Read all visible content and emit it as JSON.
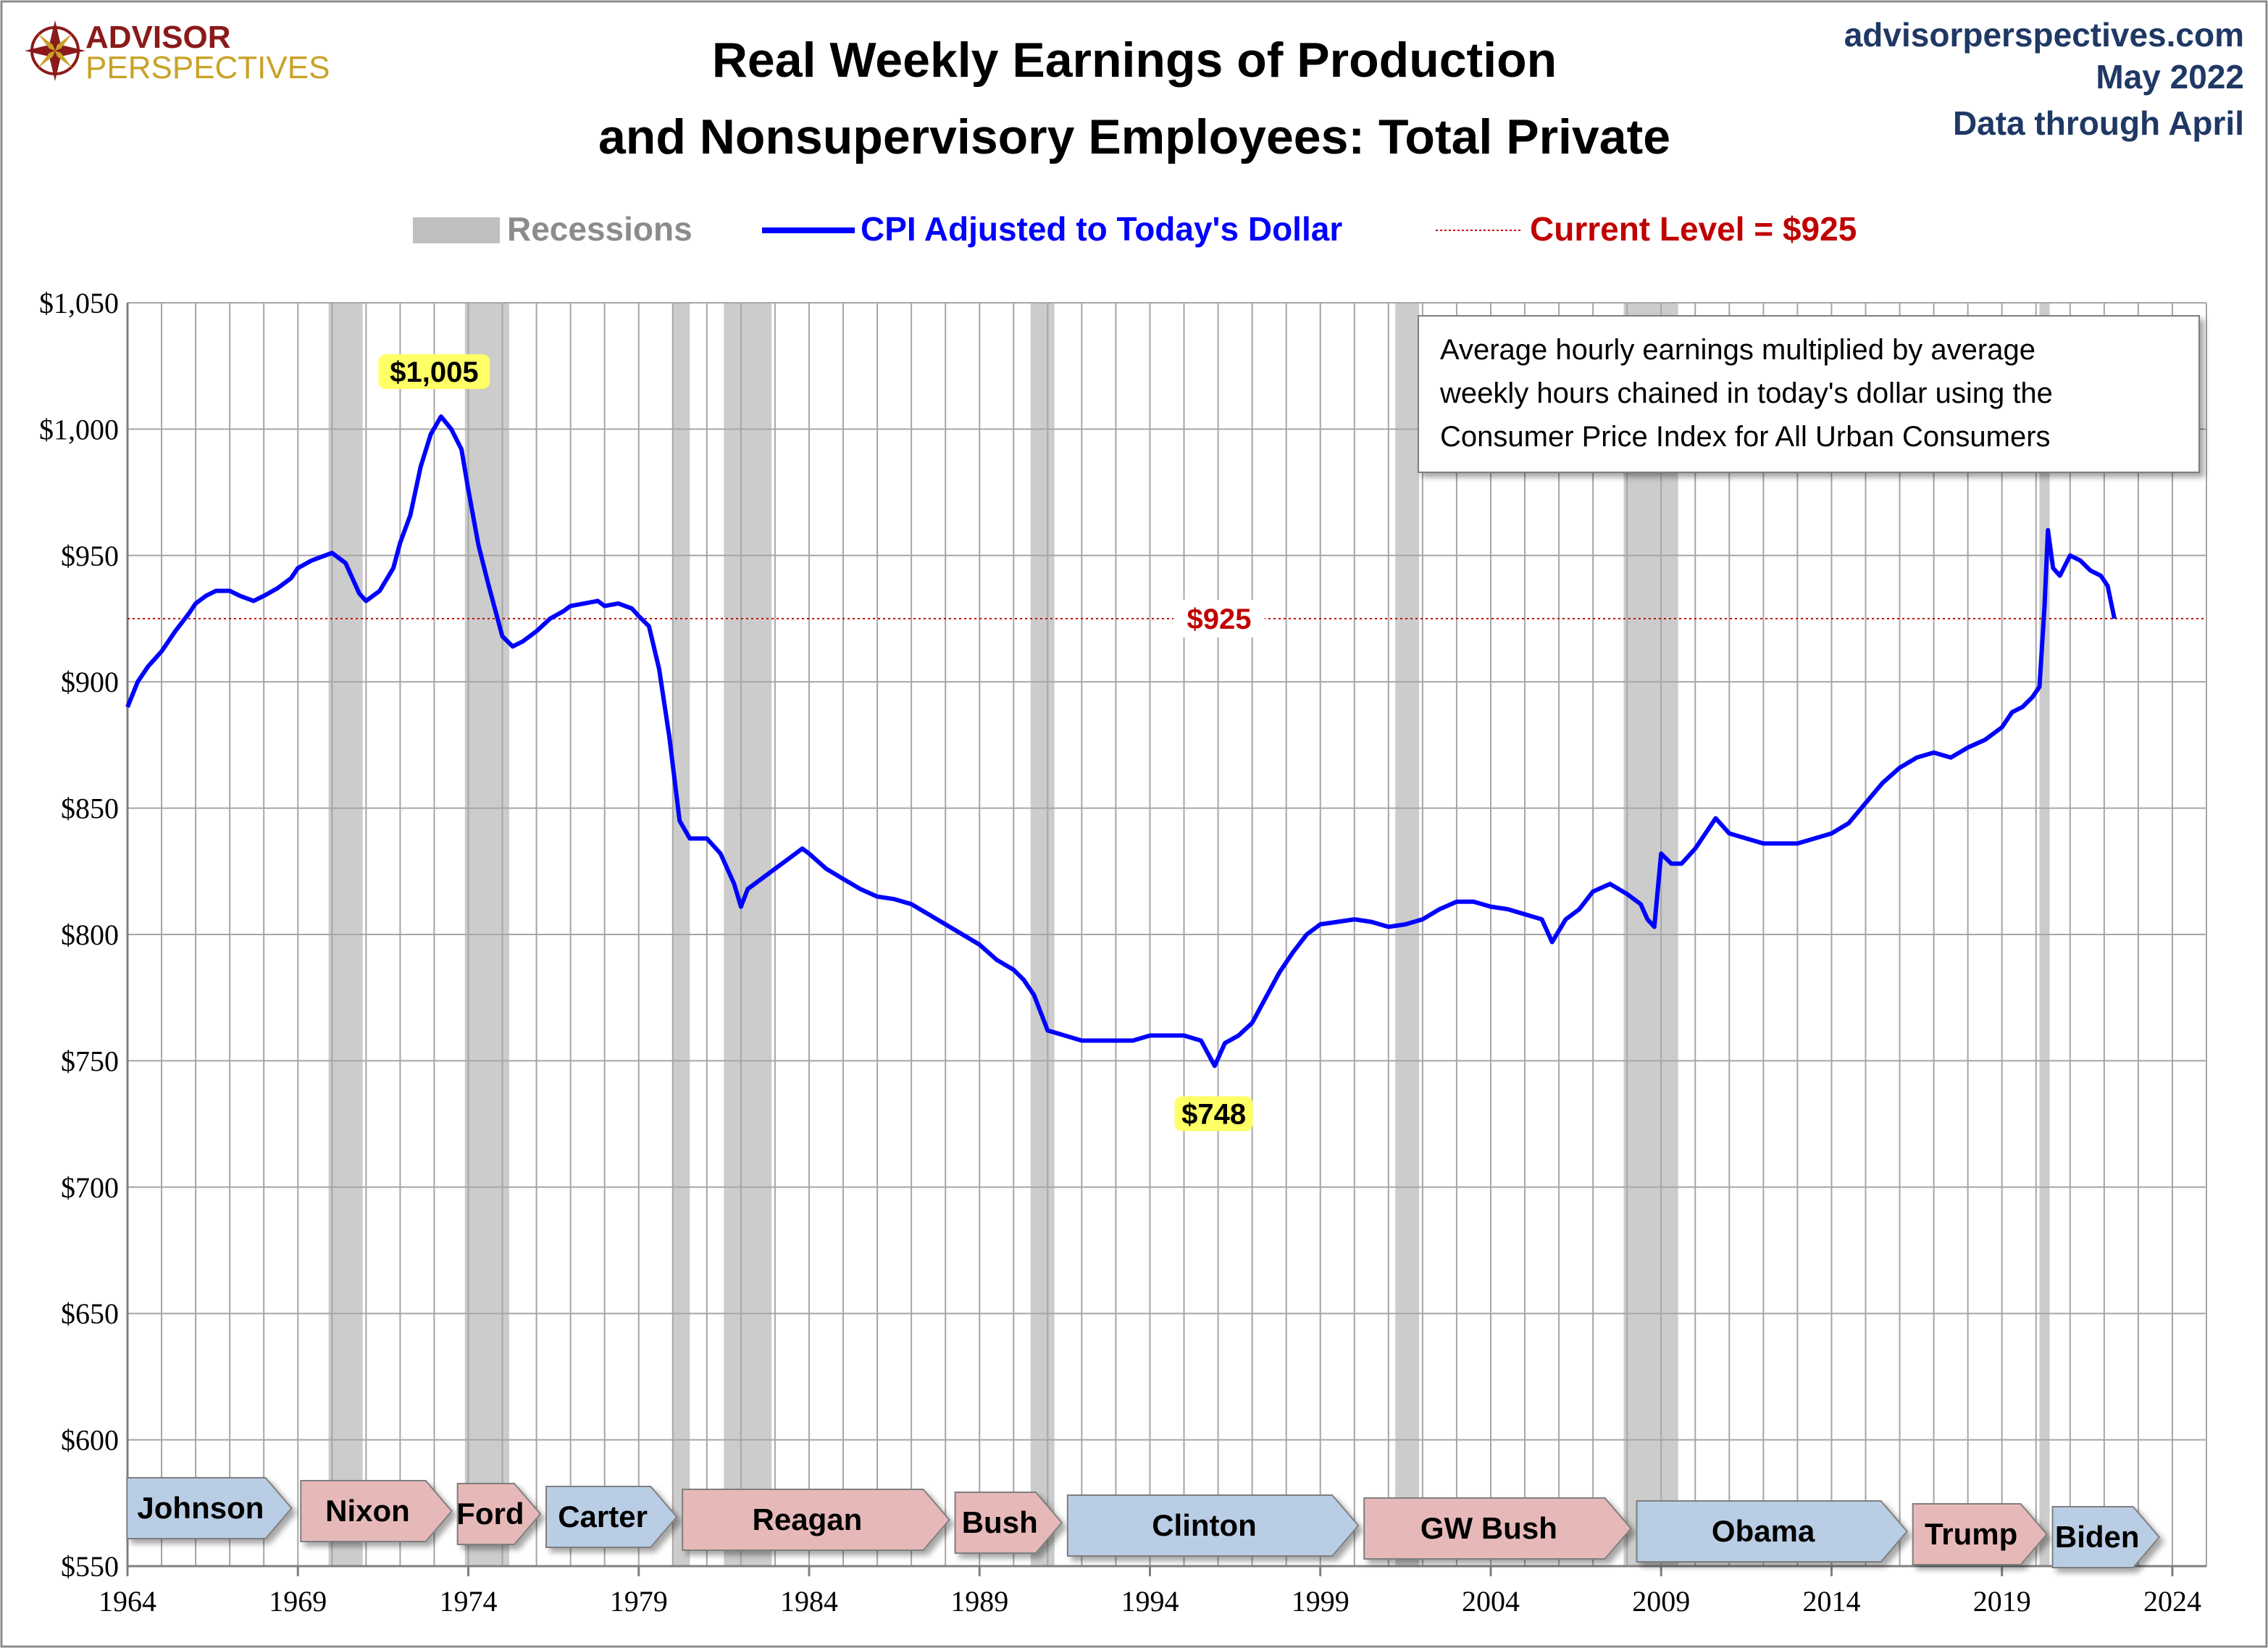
{
  "logo": {
    "line1": "ADVISOR",
    "line2": "PERSPECTIVES",
    "icon": "compass-rose-icon"
  },
  "header": {
    "title_line1": "Real Weekly Earnings of Production",
    "title_line2": "and Nonsupervisory Employees: Total Private",
    "site": "advisorperspectives.com",
    "date": "May 2022",
    "data_through": "Data through April"
  },
  "legend": {
    "recessions": "Recessions",
    "series": "CPI Adjusted to Today's Dollar",
    "current": "Current Level = $925"
  },
  "annotation_box": {
    "line1": "Average hourly earnings multiplied by average",
    "line2": "weekly hours chained in today's dollar using the",
    "line3": "Consumer Price Index for All Urban Consumers"
  },
  "colors": {
    "series": "#0000ff",
    "recession": "#bfbfbf",
    "current_line": "#c00000",
    "highlight": "#ffff66",
    "democrat": "#b9cde5",
    "republican": "#e6b9b8"
  },
  "chart_data": {
    "type": "line",
    "title": "Real Weekly Earnings of Production and Nonsupervisory Employees: Total Private",
    "xlim": [
      1964,
      2025
    ],
    "ylim": [
      550,
      1050
    ],
    "x_ticks": [
      1964,
      1969,
      1974,
      1979,
      1984,
      1989,
      1994,
      1999,
      2004,
      2009,
      2014,
      2019,
      2024
    ],
    "x_tick_labels": [
      "1964",
      "1969",
      "1974",
      "1979",
      "1984",
      "1989",
      "1994",
      "1999",
      "2004",
      "2009",
      "2014",
      "2019",
      "2024"
    ],
    "y_ticks": [
      550,
      600,
      650,
      700,
      750,
      800,
      850,
      900,
      950,
      1000,
      1050
    ],
    "y_tick_labels": [
      "$550",
      "$600",
      "$650",
      "$700",
      "$750",
      "$800",
      "$850",
      "$900",
      "$950",
      "$1,000",
      "$1,050"
    ],
    "grid": true,
    "legend_position": "top",
    "current_level": 925,
    "current_label": "$925",
    "series": [
      {
        "name": "CPI Adjusted to Today's Dollar",
        "x": [
          1964.0,
          1964.3,
          1964.6,
          1965.0,
          1965.4,
          1965.8,
          1966.0,
          1966.3,
          1966.6,
          1967.0,
          1967.3,
          1967.7,
          1968.0,
          1968.4,
          1968.8,
          1969.0,
          1969.4,
          1969.8,
          1970.0,
          1970.4,
          1970.8,
          1971.0,
          1971.4,
          1971.8,
          1972.0,
          1972.3,
          1972.6,
          1972.9,
          1973.2,
          1973.5,
          1973.8,
          1974.0,
          1974.3,
          1974.6,
          1975.0,
          1975.3,
          1975.6,
          1976.0,
          1976.4,
          1976.8,
          1977.0,
          1977.4,
          1977.8,
          1978.0,
          1978.4,
          1978.8,
          1979.0,
          1979.3,
          1979.6,
          1979.9,
          1980.2,
          1980.5,
          1981.0,
          1981.4,
          1981.8,
          1982.0,
          1982.2,
          1982.6,
          1983.0,
          1983.4,
          1983.8,
          1984.0,
          1984.5,
          1985.0,
          1985.5,
          1986.0,
          1986.5,
          1987.0,
          1987.5,
          1988.0,
          1988.5,
          1989.0,
          1989.5,
          1990.0,
          1990.3,
          1990.6,
          1991.0,
          1991.5,
          1992.0,
          1992.5,
          1993.0,
          1993.5,
          1994.0,
          1994.5,
          1995.0,
          1995.5,
          1995.9,
          1996.2,
          1996.6,
          1997.0,
          1997.4,
          1997.8,
          1998.2,
          1998.6,
          1999.0,
          1999.5,
          2000.0,
          2000.5,
          2001.0,
          2001.5,
          2002.0,
          2002.5,
          2003.0,
          2003.5,
          2004.0,
          2004.5,
          2005.0,
          2005.5,
          2005.8,
          2006.2,
          2006.6,
          2007.0,
          2007.5,
          2008.0,
          2008.4,
          2008.6,
          2008.8,
          2009.0,
          2009.3,
          2009.6,
          2010.0,
          2010.3,
          2010.6,
          2011.0,
          2011.5,
          2012.0,
          2012.5,
          2013.0,
          2013.5,
          2014.0,
          2014.5,
          2015.0,
          2015.5,
          2016.0,
          2016.5,
          2017.0,
          2017.5,
          2018.0,
          2018.5,
          2019.0,
          2019.3,
          2019.6,
          2019.9,
          2020.1,
          2020.25,
          2020.35,
          2020.5,
          2020.7,
          2021.0,
          2021.3,
          2021.6,
          2021.9,
          2022.1,
          2022.3
        ],
        "values": [
          890,
          900,
          906,
          912,
          920,
          927,
          931,
          934,
          936,
          936,
          934,
          932,
          934,
          937,
          941,
          945,
          948,
          950,
          951,
          947,
          935,
          932,
          936,
          945,
          955,
          966,
          985,
          998,
          1005,
          1000,
          992,
          976,
          954,
          938,
          918,
          914,
          916,
          920,
          925,
          928,
          930,
          931,
          932,
          930,
          931,
          929,
          926,
          922,
          905,
          878,
          845,
          838,
          838,
          832,
          820,
          811,
          818,
          822,
          826,
          830,
          834,
          832,
          826,
          822,
          818,
          815,
          814,
          812,
          808,
          804,
          800,
          796,
          790,
          786,
          782,
          776,
          762,
          760,
          758,
          758,
          758,
          758,
          760,
          760,
          760,
          758,
          748,
          757,
          760,
          765,
          775,
          785,
          793,
          800,
          804,
          805,
          806,
          805,
          803,
          804,
          806,
          810,
          813,
          813,
          811,
          810,
          808,
          806,
          797,
          806,
          810,
          817,
          820,
          816,
          812,
          806,
          803,
          832,
          828,
          828,
          834,
          840,
          846,
          840,
          838,
          836,
          836,
          836,
          838,
          840,
          844,
          852,
          860,
          866,
          870,
          872,
          870,
          874,
          877,
          882,
          888,
          890,
          894,
          898,
          930,
          960,
          945,
          942,
          950,
          948,
          944,
          942,
          938,
          925
        ]
      }
    ],
    "recessions": [
      [
        1969.9,
        1970.9
      ],
      [
        1973.9,
        1975.2
      ],
      [
        1980.0,
        1980.5
      ],
      [
        1981.5,
        1982.9
      ],
      [
        1990.5,
        1991.2
      ],
      [
        2001.2,
        2001.9
      ],
      [
        2007.9,
        2009.5
      ],
      [
        2020.1,
        2020.4
      ]
    ],
    "annotations": [
      {
        "label": "$1,005",
        "x": 1973.0,
        "y": 1005
      },
      {
        "label": "$748",
        "x": 1996.0,
        "y": 748
      }
    ],
    "presidents": [
      {
        "name": "Johnson",
        "start": 1963.9,
        "end": 1968.9,
        "party": "D"
      },
      {
        "name": "Nixon",
        "start": 1969.0,
        "end": 1973.6,
        "party": "R"
      },
      {
        "name": "Ford",
        "start": 1973.6,
        "end": 1976.2,
        "party": "R"
      },
      {
        "name": "Carter",
        "start": 1976.2,
        "end": 1980.2,
        "party": "D"
      },
      {
        "name": "Reagan",
        "start": 1980.2,
        "end": 1988.2,
        "party": "R"
      },
      {
        "name": "Bush",
        "start": 1988.2,
        "end": 1991.5,
        "party": "R"
      },
      {
        "name": "Clinton",
        "start": 1991.5,
        "end": 2000.2,
        "party": "D"
      },
      {
        "name": "GW Bush",
        "start": 2000.2,
        "end": 2008.2,
        "party": "R"
      },
      {
        "name": "Obama",
        "start": 2008.2,
        "end": 2016.3,
        "party": "D"
      },
      {
        "name": "Trump",
        "start": 2016.3,
        "end": 2020.4,
        "party": "R"
      },
      {
        "name": "Biden",
        "start": 2020.4,
        "end": 2023.7,
        "party": "D"
      }
    ]
  }
}
